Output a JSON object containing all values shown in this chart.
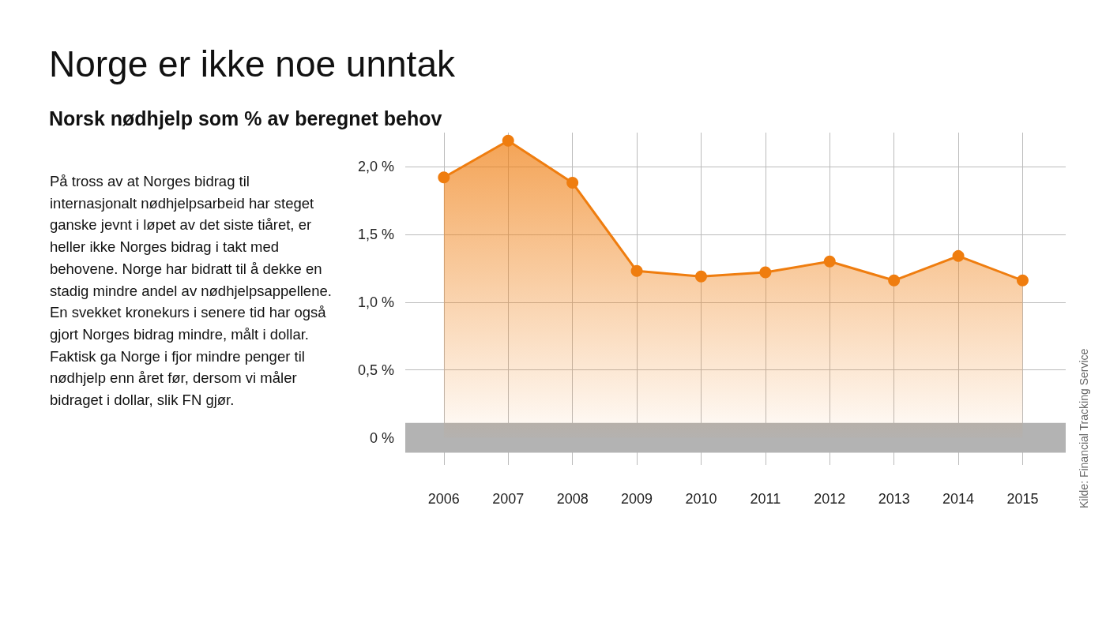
{
  "chart_data": {
    "type": "area",
    "title": "Norge er ikke noe unntak",
    "subtitle": "Norsk nødhjelp som % av beregnet behov",
    "x": [
      2006,
      2007,
      2008,
      2009,
      2010,
      2011,
      2012,
      2013,
      2014,
      2015
    ],
    "series": [
      {
        "color": "#ef7d0f",
        "values": [
          1.92,
          2.19,
          1.88,
          1.23,
          1.19,
          1.22,
          1.3,
          1.16,
          1.34,
          1.16
        ]
      }
    ],
    "xlim": [
      2005.4,
      2015.67
    ],
    "xticks": [
      2006,
      2007,
      2008,
      2009,
      2010,
      2011,
      2012,
      2013,
      2014,
      2015
    ],
    "ylim": [
      -0.2,
      2.25
    ],
    "yticks": [
      {
        "value": 0,
        "label": "0 %"
      },
      {
        "value": 0.5,
        "label": "0,5 %"
      },
      {
        "value": 1,
        "label": "1,0 %"
      },
      {
        "value": 1.5,
        "label": "1,5 %"
      },
      {
        "value": 2,
        "label": "2,0 %"
      }
    ],
    "bands": [
      {
        "axis": "y",
        "from": -0.11,
        "to": 0.11,
        "color": "#b3b3b3"
      }
    ],
    "grid": true,
    "marker": "circle",
    "annotations": [
      "På tross av at Norges bidrag til internasjonalt nødhjelpsarbeid har steget ganske jevnt i løpet av det siste tiåret, er heller ikke Norges bidrag i takt med behovene. Norge har bidratt til å dekke en stadig mindre andel av nødhjelpsappellene. En svekket kronekurs i senere tid har også gjort Norges bidrag mindre, målt i dollar. Faktisk ga Norge i fjor mindre penger til nødhjelp enn året før, dersom vi måler bidraget i dollar, slik FN gjør.",
      "Kilde: Financial Tracking Service"
    ]
  }
}
